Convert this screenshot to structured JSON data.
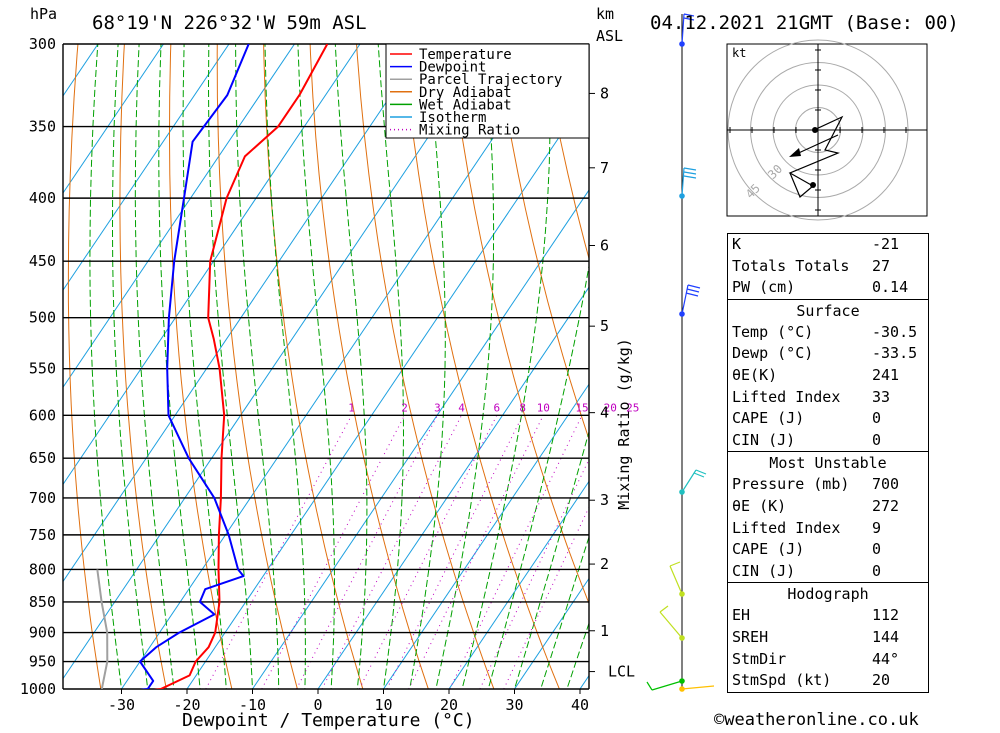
{
  "chart_data": {
    "type": "line",
    "title": "68°19'N 226°32'W 59m ASL",
    "date": "04.12.2021 21GMT (Base: 00)",
    "pressure_unit": "hPa",
    "height_unit": "km",
    "height_unit2": "ASL",
    "xlabel": "Dewpoint / Temperature (°C)",
    "mixing_label": "Mixing Ratio (g/kg)",
    "xlim": [
      -40,
      40
    ],
    "x_ticks": [
      "-30",
      "-20",
      "-10",
      "0",
      "10",
      "20",
      "30",
      "40"
    ],
    "pressure_levels": [
      "300",
      "350",
      "400",
      "450",
      "500",
      "550",
      "600",
      "650",
      "700",
      "750",
      "800",
      "850",
      "900",
      "950",
      "1000"
    ],
    "km_ticks": [
      {
        "label": "8",
        "p": 329
      },
      {
        "label": "7",
        "p": 378
      },
      {
        "label": "6",
        "p": 437
      },
      {
        "label": "5",
        "p": 508
      },
      {
        "label": "4",
        "p": 597
      },
      {
        "label": "3",
        "p": 703
      },
      {
        "label": "2",
        "p": 792
      },
      {
        "label": "1",
        "p": 897
      },
      {
        "label": "LCL",
        "p": 968
      }
    ],
    "mixing_ratio_labels": [
      "1",
      "2",
      "3",
      "4",
      "6",
      "8",
      "10",
      "15",
      "20",
      "25"
    ],
    "legend": [
      "Temperature",
      "Dewpoint",
      "Parcel Trajectory",
      "Dry Adiabat",
      "Wet Adiabat",
      "Isotherm",
      "Mixing Ratio"
    ],
    "colors": {
      "temperature": "#ff0000",
      "dewpoint": "#0000ff",
      "parcel": "#a0a0a0",
      "dry": "#e07010",
      "wet": "#00a000",
      "isotherm": "#1ea0e0",
      "mixing": "#c000c0"
    },
    "temperature": [
      {
        "p": 1013,
        "t": -30.5
      },
      {
        "p": 1000,
        "t": -24.0
      },
      {
        "p": 975,
        "t": -21.0
      },
      {
        "p": 950,
        "t": -21.5
      },
      {
        "p": 925,
        "t": -21.0
      },
      {
        "p": 900,
        "t": -21.5
      },
      {
        "p": 850,
        "t": -24.0
      },
      {
        "p": 800,
        "t": -27.5
      },
      {
        "p": 750,
        "t": -31.0
      },
      {
        "p": 700,
        "t": -34.5
      },
      {
        "p": 650,
        "t": -38.5
      },
      {
        "p": 600,
        "t": -42.5
      },
      {
        "p": 550,
        "t": -48.0
      },
      {
        "p": 520,
        "t": -52.0
      },
      {
        "p": 500,
        "t": -55.0
      },
      {
        "p": 450,
        "t": -60.5
      },
      {
        "p": 400,
        "t": -64.5
      },
      {
        "p": 370,
        "t": -66.0
      },
      {
        "p": 350,
        "t": -64.0
      },
      {
        "p": 330,
        "t": -64.0
      },
      {
        "p": 300,
        "t": -65.0
      }
    ],
    "dewpoint": [
      {
        "p": 1013,
        "t": -33.5
      },
      {
        "p": 1000,
        "t": -26.0
      },
      {
        "p": 985,
        "t": -26.0
      },
      {
        "p": 950,
        "t": -30.0
      },
      {
        "p": 925,
        "t": -29.0
      },
      {
        "p": 900,
        "t": -27.0
      },
      {
        "p": 870,
        "t": -23.5
      },
      {
        "p": 850,
        "t": -27.0
      },
      {
        "p": 830,
        "t": -27.5
      },
      {
        "p": 810,
        "t": -23.0
      },
      {
        "p": 800,
        "t": -24.5
      },
      {
        "p": 750,
        "t": -29.5
      },
      {
        "p": 700,
        "t": -35.5
      },
      {
        "p": 650,
        "t": -43.5
      },
      {
        "p": 600,
        "t": -51.0
      },
      {
        "p": 550,
        "t": -56.0
      },
      {
        "p": 500,
        "t": -61.0
      },
      {
        "p": 450,
        "t": -66.0
      },
      {
        "p": 400,
        "t": -71.0
      },
      {
        "p": 360,
        "t": -75.5
      },
      {
        "p": 330,
        "t": -75.0
      },
      {
        "p": 300,
        "t": -77.0
      }
    ],
    "parcel": [
      {
        "p": 1000,
        "t": -33.0
      },
      {
        "p": 950,
        "t": -35.0
      },
      {
        "p": 900,
        "t": -38.0
      },
      {
        "p": 850,
        "t": -42.0
      },
      {
        "p": 800,
        "t": -46.0
      }
    ]
  },
  "hodograph": {
    "unit": "kt",
    "rings": [
      "30",
      "45"
    ]
  },
  "indices": [
    {
      "k": "K",
      "v": "-21"
    },
    {
      "k": "Totals Totals",
      "v": "27"
    },
    {
      "k": "PW (cm)",
      "v": "0.14"
    }
  ],
  "surface": {
    "title": "Surface",
    "rows": [
      {
        "k": "Temp (°C)",
        "v": "-30.5"
      },
      {
        "k": "Dewp (°C)",
        "v": "-33.5"
      },
      {
        "k": "θE(K)",
        "v": "241"
      },
      {
        "k": "Lifted Index",
        "v": "33"
      },
      {
        "k": "CAPE (J)",
        "v": "0"
      },
      {
        "k": "CIN (J)",
        "v": "0"
      }
    ]
  },
  "most_unstable": {
    "title": "Most Unstable",
    "rows": [
      {
        "k": "Pressure (mb)",
        "v": "700"
      },
      {
        "k": "θE (K)",
        "v": "272"
      },
      {
        "k": "Lifted Index",
        "v": "9"
      },
      {
        "k": "CAPE (J)",
        "v": "0"
      },
      {
        "k": "CIN (J)",
        "v": "0"
      }
    ]
  },
  "hodo_table": {
    "title": "Hodograph",
    "rows": [
      {
        "k": "EH",
        "v": "112"
      },
      {
        "k": "SREH",
        "v": "144"
      },
      {
        "k": "StmDir",
        "v": "44°"
      },
      {
        "k": "StmSpd (kt)",
        "v": "20"
      }
    ]
  },
  "footer": "©weatheronline.co.uk"
}
